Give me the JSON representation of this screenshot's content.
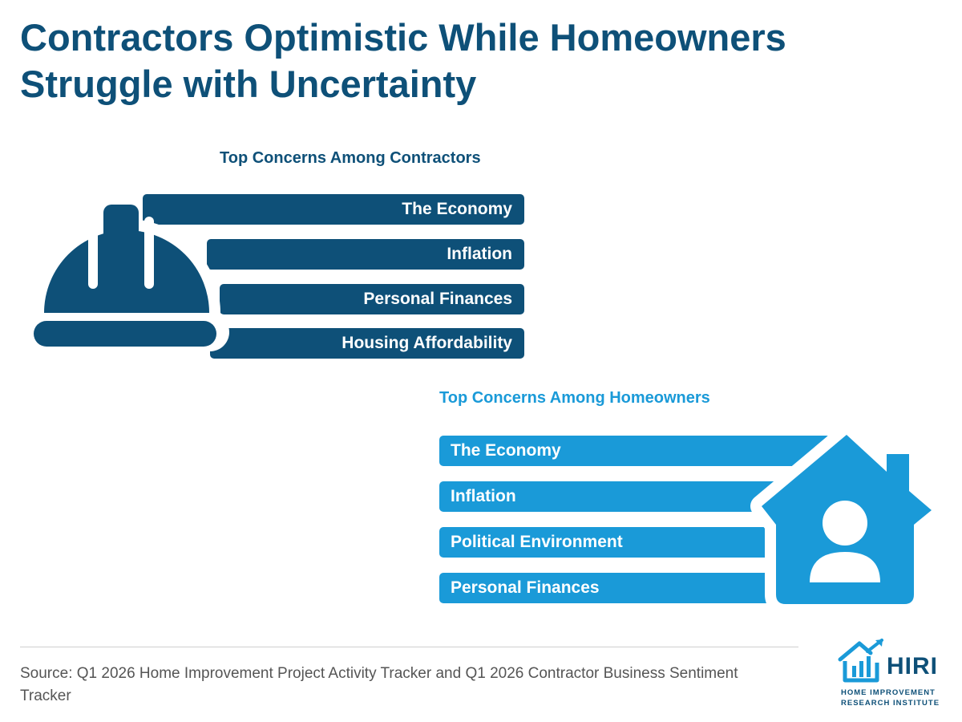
{
  "header": {
    "title": "Contractors Optimistic While Homeowners Struggle with Uncertainty"
  },
  "contractors": {
    "title": "Top Concerns Among Contractors",
    "icon": "hard-hat-icon",
    "color": "#0e5078",
    "concerns": [
      "The Economy",
      "Inflation",
      "Personal Finances",
      "Housing Affordability"
    ]
  },
  "homeowners": {
    "title": "Top Concerns Among Homeowners",
    "icon": "house-person-icon",
    "color": "#1a9ad8",
    "concerns": [
      "The Economy",
      "Inflation",
      "Political Environment",
      "Personal Finances"
    ]
  },
  "footer": {
    "source": "Source: Q1 2026 Home Improvement Project Activity Tracker and Q1 2026 Contractor Business Sentiment Tracker",
    "logo": {
      "name": "HIRI",
      "line1": "HOME IMPROVEMENT",
      "line2": "RESEARCH INSTITUTE",
      "icon": "house-chart-icon"
    }
  }
}
